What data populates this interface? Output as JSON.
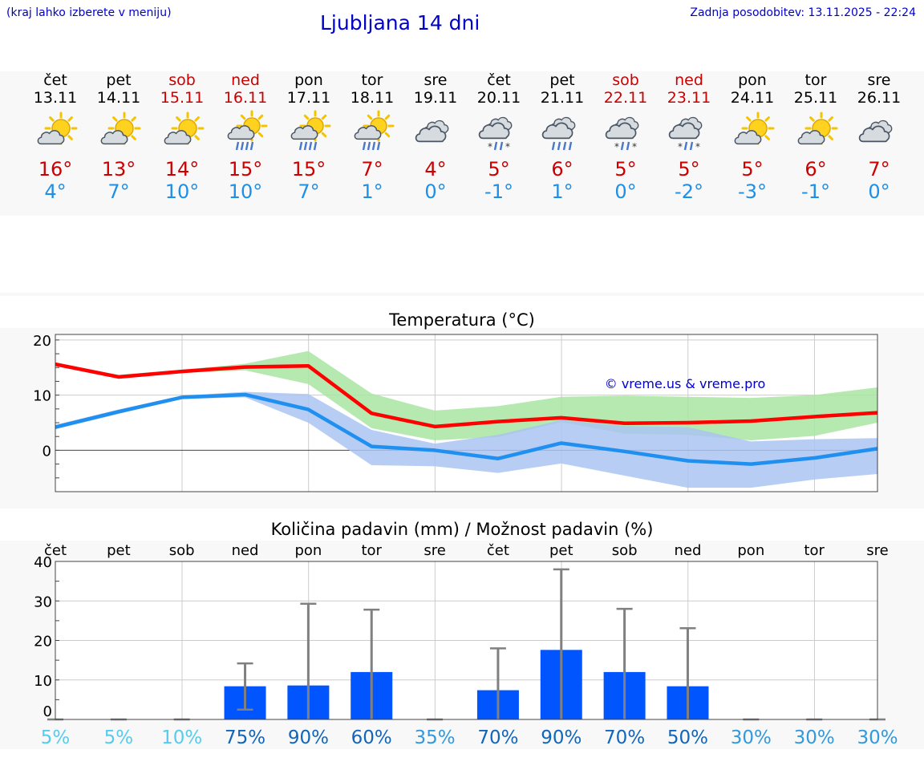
{
  "header": {
    "hint": "(kraj lahko izberete v meniju)",
    "title": "Ljubljana 14 dni",
    "updated": "Zadnja posodobitev: 13.11.2025 - 22:24"
  },
  "days": [
    {
      "name": "čet",
      "date": "13.11",
      "weekend": false,
      "icon": "partly-cloudy-icon",
      "max": "16°",
      "min": "4°"
    },
    {
      "name": "pet",
      "date": "14.11",
      "weekend": false,
      "icon": "partly-cloudy-icon",
      "max": "13°",
      "min": "7°"
    },
    {
      "name": "sob",
      "date": "15.11",
      "weekend": true,
      "icon": "partly-cloudy-icon",
      "max": "14°",
      "min": "10°"
    },
    {
      "name": "ned",
      "date": "16.11",
      "weekend": true,
      "icon": "sun-rain-icon",
      "max": "15°",
      "min": "10°"
    },
    {
      "name": "pon",
      "date": "17.11",
      "weekend": false,
      "icon": "sun-rain-icon",
      "max": "15°",
      "min": "7°"
    },
    {
      "name": "tor",
      "date": "18.11",
      "weekend": false,
      "icon": "sun-rain-icon",
      "max": "7°",
      "min": "1°"
    },
    {
      "name": "sre",
      "date": "19.11",
      "weekend": false,
      "icon": "cloudy-icon",
      "max": "4°",
      "min": "0°"
    },
    {
      "name": "čet",
      "date": "20.11",
      "weekend": false,
      "icon": "sleet-icon",
      "max": "5°",
      "min": "-1°"
    },
    {
      "name": "pet",
      "date": "21.11",
      "weekend": false,
      "icon": "rain-icon",
      "max": "6°",
      "min": "1°"
    },
    {
      "name": "sob",
      "date": "22.11",
      "weekend": true,
      "icon": "sleet-icon",
      "max": "5°",
      "min": "0°"
    },
    {
      "name": "ned",
      "date": "23.11",
      "weekend": true,
      "icon": "sleet-icon",
      "max": "5°",
      "min": "-2°"
    },
    {
      "name": "pon",
      "date": "24.11",
      "weekend": false,
      "icon": "partly-cloudy-icon",
      "max": "5°",
      "min": "-3°"
    },
    {
      "name": "tor",
      "date": "25.11",
      "weekend": false,
      "icon": "partly-cloudy-icon",
      "max": "6°",
      "min": "-1°"
    },
    {
      "name": "sre",
      "date": "26.11",
      "weekend": false,
      "icon": "cloudy-icon",
      "max": "7°",
      "min": "0°"
    }
  ],
  "chart_data": [
    {
      "type": "line",
      "title": "Temperatura (°C)",
      "watermark": "© vreme.us & vreme.pro",
      "ylim": [
        -7.5,
        21
      ],
      "yticks": [
        "20",
        "10",
        "0"
      ],
      "grid": true,
      "series": [
        {
          "values": [
            15.6,
            13.3,
            14.3,
            15.1,
            15.3,
            6.7,
            4.3,
            5.2,
            5.9,
            4.9,
            5.0,
            5.3,
            6.1,
            6.8
          ],
          "band_low": [
            15.4,
            13.4,
            14.0,
            14.5,
            12.0,
            4.0,
            1.8,
            2.4,
            5.1,
            3.0,
            2.8,
            1.8,
            2.6,
            5.0
          ],
          "band_high": [
            15.8,
            13.7,
            14.6,
            15.7,
            18.0,
            10.3,
            7.2,
            8.0,
            9.7,
            9.9,
            9.7,
            9.5,
            10.0,
            11.4
          ],
          "color": "#ff0000",
          "band_color": "#a9e5a2"
        },
        {
          "values": [
            4.2,
            7.0,
            9.6,
            10.1,
            7.4,
            0.7,
            0.0,
            -1.5,
            1.3,
            -0.2,
            -1.9,
            -2.5,
            -1.4,
            0.3
          ],
          "band_low": [
            3.8,
            6.6,
            9.3,
            9.6,
            5.0,
            -2.7,
            -2.9,
            -4.1,
            -2.4,
            -4.6,
            -6.8,
            -6.8,
            -5.3,
            -4.3
          ],
          "band_high": [
            4.6,
            7.4,
            9.9,
            10.6,
            10.2,
            3.7,
            1.2,
            2.8,
            5.5,
            4.4,
            4.2,
            1.6,
            2.0,
            2.2
          ],
          "color": "#1f8ff0",
          "band_color": "#aac4f2"
        }
      ]
    },
    {
      "type": "bar",
      "title": "Količina padavin (mm) / Možnost padavin (%)",
      "categories": [
        "čet",
        "pet",
        "sob",
        "ned",
        "pon",
        "tor",
        "sre",
        "čet",
        "pet",
        "sob",
        "ned",
        "pon",
        "tor",
        "sre"
      ],
      "ylim": [
        0,
        40
      ],
      "yticks": [
        "40",
        "30",
        "20",
        "10",
        "0"
      ],
      "values": [
        0,
        0,
        0,
        8.4,
        8.6,
        12.0,
        0,
        7.4,
        17.6,
        12.0,
        8.4,
        0,
        0,
        0
      ],
      "error_low": [
        0,
        0,
        0,
        2.5,
        0,
        0,
        0,
        0,
        0,
        0,
        0,
        0,
        0,
        0
      ],
      "error_high": [
        0,
        0,
        0,
        14.2,
        29.3,
        27.8,
        0,
        18.0,
        38.0,
        28.0,
        23.1,
        0,
        0,
        0
      ],
      "probability": [
        "5%",
        "5%",
        "10%",
        "75%",
        "90%",
        "60%",
        "35%",
        "70%",
        "90%",
        "70%",
        "50%",
        "30%",
        "30%",
        "30%"
      ],
      "bar_color": "#0055ff",
      "error_color": "#808080"
    }
  ],
  "colors": {
    "header_blue": "#0000cc",
    "max_temp": "#cc0000",
    "min_temp": "#1e8fe6",
    "prob_low": "#55ccee",
    "prob_mid": "#3399dd",
    "prob_high": "#1166bb"
  }
}
